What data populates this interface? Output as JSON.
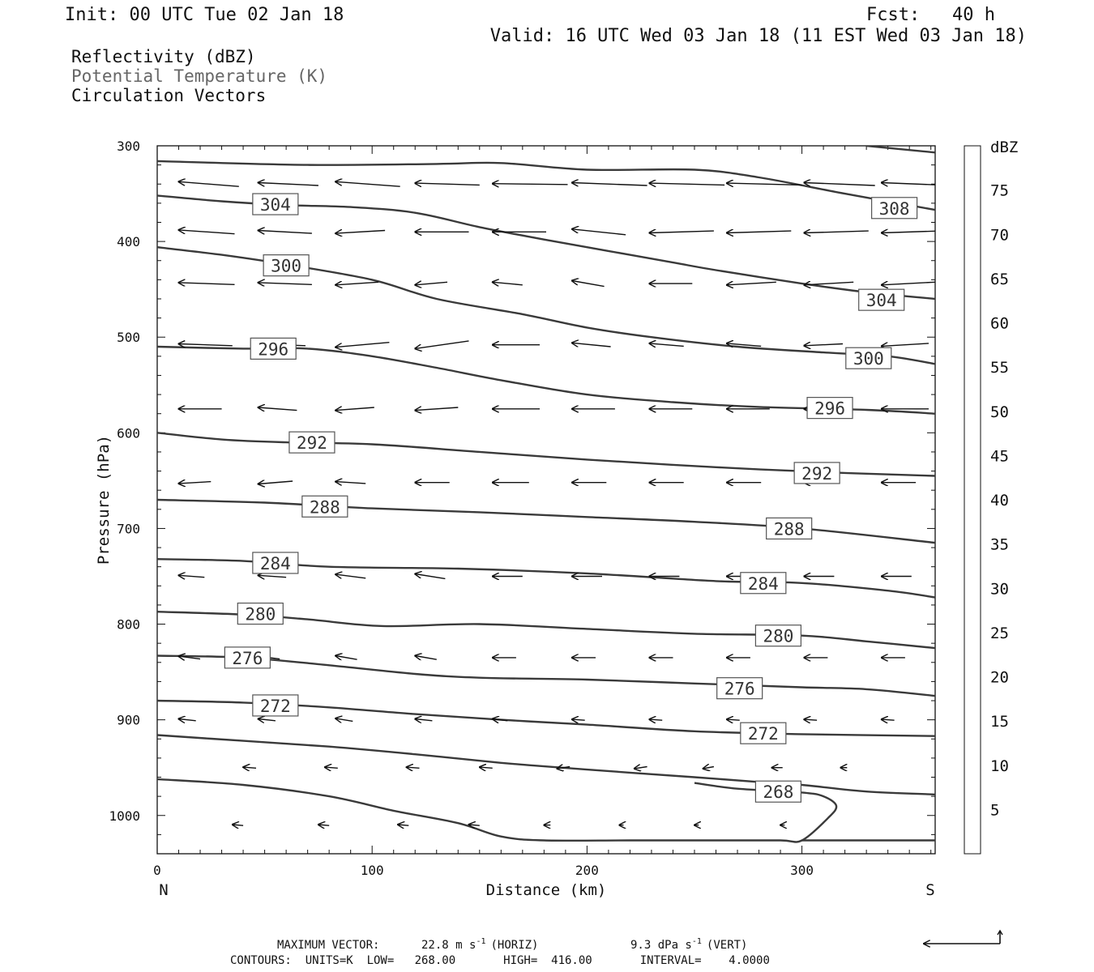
{
  "header": {
    "init": "Init: 00 UTC Tue 02 Jan 18",
    "fcst": "Fcst:   40 h",
    "valid": "Valid: 16 UTC Wed 03 Jan 18 (11 EST Wed 03 Jan 18)"
  },
  "variables": [
    {
      "label": "Reflectivity (dBZ)",
      "color": "#111111"
    },
    {
      "label": "Potential Temperature (K)",
      "color": "#666666"
    },
    {
      "label": "Circulation Vectors",
      "color": "#111111"
    }
  ],
  "footer": {
    "max_vector_label": "MAXIMUM VECTOR:",
    "horiz_value": "22.8 m s",
    "horiz_unit": "-1",
    "horiz_tag": "(HORIZ)",
    "vert_value": "9.3 dPa s",
    "vert_unit": "-1",
    "vert_tag": "(VERT)",
    "contours": "CONTOURS:  UNITS=K  LOW=   268.00       HIGH=  416.00       INTERVAL=    4.0000"
  },
  "chart_data": {
    "type": "line",
    "xlabel": "Distance (km)",
    "ylabel": "Pressure (hPa)",
    "x_left_label": "N",
    "x_right_label": "S",
    "xlim": [
      0,
      362
    ],
    "ylim": [
      300,
      1040
    ],
    "x_ticks": [
      0,
      100,
      200,
      300
    ],
    "y_ticks": [
      300,
      400,
      500,
      600,
      700,
      800,
      900,
      1000
    ],
    "colorbar": {
      "unit": "dBZ",
      "levels": [
        5,
        10,
        15,
        20,
        25,
        30,
        35,
        40,
        45,
        50,
        55,
        60,
        65,
        70,
        75
      ],
      "colors": [
        "#ffffff",
        "#00e5e5",
        "#0099e5",
        "#0000e5",
        "#00ff00",
        "#00cc00",
        "#008800",
        "#ffff00",
        "#e5c000",
        "#ff8800",
        "#ff0000",
        "#dd0000",
        "#bb0000",
        "#ff00ff",
        "#9955cc",
        "#ffffff"
      ]
    },
    "contour_color": "#3a3a3a",
    "contours": [
      {
        "value": "308",
        "points": [
          [
            330,
            300
          ],
          [
            362,
            307
          ]
        ],
        "labels": [
          [
            343,
            365
          ]
        ]
      },
      {
        "value": "",
        "points": [
          [
            0,
            316
          ],
          [
            70,
            320
          ],
          [
            130,
            319
          ],
          [
            160,
            318
          ],
          [
            200,
            325
          ],
          [
            250,
            325
          ],
          [
            280,
            333
          ],
          [
            320,
            350
          ],
          [
            362,
            367
          ]
        ],
        "labels": []
      },
      {
        "value": "304",
        "points": [
          [
            0,
            352
          ],
          [
            30,
            358
          ],
          [
            60,
            362
          ],
          [
            90,
            364
          ],
          [
            120,
            370
          ],
          [
            150,
            385
          ],
          [
            180,
            398
          ],
          [
            210,
            410
          ],
          [
            240,
            422
          ],
          [
            260,
            430
          ],
          [
            300,
            444
          ],
          [
            330,
            453
          ],
          [
            362,
            460
          ]
        ],
        "labels": [
          [
            55,
            361
          ],
          [
            337,
            461
          ]
        ]
      },
      {
        "value": "300",
        "points": [
          [
            0,
            406
          ],
          [
            30,
            414
          ],
          [
            60,
            424
          ],
          [
            100,
            440
          ],
          [
            130,
            460
          ],
          [
            170,
            476
          ],
          [
            200,
            490
          ],
          [
            230,
            500
          ],
          [
            270,
            510
          ],
          [
            310,
            516
          ],
          [
            340,
            520
          ],
          [
            362,
            528
          ]
        ],
        "labels": [
          [
            60,
            425
          ],
          [
            331,
            522
          ]
        ]
      },
      {
        "value": "296",
        "points": [
          [
            0,
            510
          ],
          [
            40,
            512
          ],
          [
            70,
            512
          ],
          [
            100,
            520
          ],
          [
            130,
            532
          ],
          [
            160,
            545
          ],
          [
            200,
            560
          ],
          [
            240,
            568
          ],
          [
            280,
            573
          ],
          [
            330,
            576
          ],
          [
            362,
            580
          ]
        ],
        "labels": [
          [
            54,
            512
          ],
          [
            313,
            574
          ]
        ]
      },
      {
        "value": "292",
        "points": [
          [
            0,
            600
          ],
          [
            30,
            607
          ],
          [
            60,
            610
          ],
          [
            100,
            612
          ],
          [
            150,
            620
          ],
          [
            200,
            628
          ],
          [
            260,
            636
          ],
          [
            320,
            642
          ],
          [
            362,
            645
          ]
        ],
        "labels": [
          [
            72,
            610
          ],
          [
            307,
            642
          ]
        ]
      },
      {
        "value": "288",
        "points": [
          [
            0,
            670
          ],
          [
            50,
            673
          ],
          [
            100,
            679
          ],
          [
            150,
            683
          ],
          [
            200,
            688
          ],
          [
            250,
            693
          ],
          [
            300,
            700
          ],
          [
            362,
            715
          ]
        ],
        "labels": [
          [
            78,
            677
          ],
          [
            294,
            700
          ]
        ]
      },
      {
        "value": "284",
        "points": [
          [
            0,
            732
          ],
          [
            40,
            734
          ],
          [
            80,
            740
          ],
          [
            140,
            742
          ],
          [
            200,
            747
          ],
          [
            260,
            755
          ],
          [
            300,
            757
          ],
          [
            340,
            765
          ],
          [
            362,
            772
          ]
        ],
        "labels": [
          [
            55,
            736
          ],
          [
            282,
            757
          ]
        ]
      },
      {
        "value": "280",
        "points": [
          [
            0,
            787
          ],
          [
            40,
            790
          ],
          [
            70,
            795
          ],
          [
            105,
            802
          ],
          [
            150,
            800
          ],
          [
            200,
            805
          ],
          [
            250,
            810
          ],
          [
            300,
            812
          ],
          [
            330,
            818
          ],
          [
            362,
            825
          ]
        ],
        "labels": [
          [
            48,
            789
          ],
          [
            289,
            812
          ]
        ]
      },
      {
        "value": "276",
        "points": [
          [
            0,
            833
          ],
          [
            40,
            835
          ],
          [
            80,
            843
          ],
          [
            120,
            852
          ],
          [
            150,
            856
          ],
          [
            200,
            858
          ],
          [
            250,
            862
          ],
          [
            300,
            866
          ],
          [
            330,
            868
          ],
          [
            362,
            875
          ]
        ],
        "labels": [
          [
            42,
            835
          ],
          [
            271,
            867
          ]
        ]
      },
      {
        "value": "272",
        "points": [
          [
            0,
            880
          ],
          [
            40,
            882
          ],
          [
            80,
            887
          ],
          [
            120,
            894
          ],
          [
            160,
            900
          ],
          [
            200,
            905
          ],
          [
            250,
            912
          ],
          [
            300,
            915
          ],
          [
            362,
            917
          ]
        ],
        "labels": [
          [
            55,
            885
          ],
          [
            282,
            914
          ]
        ]
      },
      {
        "value": "",
        "points": [
          [
            0,
            916
          ],
          [
            40,
            922
          ],
          [
            80,
            928
          ],
          [
            120,
            936
          ],
          [
            160,
            945
          ],
          [
            200,
            952
          ],
          [
            250,
            960
          ],
          [
            280,
            965
          ],
          [
            300,
            968
          ],
          [
            330,
            975
          ],
          [
            362,
            978
          ]
        ],
        "labels": []
      },
      {
        "value": "268",
        "points": [
          [
            0,
            962
          ],
          [
            40,
            968
          ],
          [
            80,
            980
          ],
          [
            110,
            995
          ],
          [
            140,
            1008
          ],
          [
            160,
            1022
          ],
          [
            180,
            1026
          ],
          [
            220,
            1026
          ],
          [
            260,
            1026
          ],
          [
            290,
            1026
          ],
          [
            300,
            1026
          ],
          [
            312,
            1003
          ],
          [
            316,
            990
          ],
          [
            310,
            980
          ],
          [
            300,
            976
          ],
          [
            270,
            972
          ],
          [
            250,
            966
          ]
        ],
        "labels": [
          [
            289,
            975
          ]
        ]
      },
      {
        "value": "",
        "points": [
          [
            300,
            1026
          ],
          [
            340,
            1026
          ],
          [
            362,
            1026
          ]
        ],
        "labels": []
      }
    ],
    "vector_rows": [
      {
        "p": 340,
        "x": [
          10,
          47,
          83,
          120,
          156,
          193,
          229,
          265,
          301,
          337
        ],
        "dx": [
          -28,
          -28,
          -30,
          -30,
          -35,
          -35,
          -35,
          -35,
          -33,
          -33
        ],
        "dp": [
          -5,
          -3,
          -5,
          -2,
          -1,
          -3,
          -2,
          -2,
          -3,
          -3
        ]
      },
      {
        "p": 390,
        "x": [
          10,
          47,
          83,
          120,
          156,
          193,
          229,
          265,
          301,
          337
        ],
        "dx": [
          -26,
          -25,
          -23,
          -25,
          -25,
          -25,
          -30,
          -30,
          -30,
          -27
        ],
        "dp": [
          -4,
          -3,
          3,
          0,
          0,
          -6,
          2,
          2,
          2,
          2
        ]
      },
      {
        "p": 444,
        "x": [
          10,
          47,
          83,
          120,
          156,
          193,
          229,
          265,
          301,
          337
        ],
        "dx": [
          -26,
          -25,
          -20,
          -15,
          -14,
          -15,
          -20,
          -23,
          -23,
          -25
        ],
        "dp": [
          -2,
          -2,
          3,
          3,
          -3,
          -6,
          0,
          3,
          3,
          3
        ]
      },
      {
        "p": 508,
        "x": [
          10,
          47,
          83,
          120,
          156,
          193,
          229,
          265,
          301,
          337
        ],
        "dx": [
          -25,
          -22,
          -25,
          -25,
          -22,
          -18,
          -16,
          -16,
          -18,
          -22
        ],
        "dp": [
          -2,
          -2,
          5,
          8,
          0,
          -4,
          -3,
          -3,
          2,
          3
        ]
      },
      {
        "p": 575,
        "x": [
          10,
          47,
          83,
          120,
          156,
          193,
          229,
          265,
          301,
          337
        ],
        "dx": [
          -20,
          -18,
          -18,
          -20,
          -22,
          -20,
          -20,
          -20,
          -20,
          -22
        ],
        "dp": [
          0,
          -3,
          3,
          3,
          0,
          0,
          0,
          0,
          0,
          0
        ]
      },
      {
        "p": 652,
        "x": [
          10,
          47,
          83,
          120,
          156,
          193,
          229,
          265,
          301,
          337
        ],
        "dx": [
          -15,
          -16,
          -14,
          -16,
          -17,
          -16,
          -16,
          -16,
          -16,
          -16
        ],
        "dp": [
          2,
          3,
          -2,
          0,
          0,
          0,
          0,
          0,
          0,
          0
        ]
      },
      {
        "p": 750,
        "x": [
          10,
          47,
          83,
          120,
          156,
          193,
          229,
          265,
          301,
          337
        ],
        "dx": [
          -12,
          -13,
          -14,
          -14,
          -14,
          -14,
          -14,
          -14,
          -14,
          -14
        ],
        "dp": [
          -2,
          -2,
          -4,
          -5,
          0,
          0,
          0,
          0,
          0,
          0
        ]
      },
      {
        "p": 835,
        "x": [
          10,
          47,
          83,
          120,
          156,
          193,
          229,
          265,
          301,
          337
        ],
        "dx": [
          -10,
          -10,
          -10,
          -10,
          -11,
          -11,
          -11,
          -11,
          -11,
          -11
        ],
        "dp": [
          -3,
          -3,
          -4,
          -4,
          0,
          0,
          0,
          0,
          0,
          0
        ]
      },
      {
        "p": 900,
        "x": [
          10,
          47,
          83,
          120,
          156,
          193,
          229,
          265,
          301,
          337
        ],
        "dx": [
          -8,
          -8,
          -8,
          -8,
          -7,
          -6,
          -6,
          -6,
          -6,
          -6
        ],
        "dp": [
          -2,
          -2,
          -3,
          -2,
          -2,
          -1,
          -1,
          -1,
          -1,
          -1
        ]
      },
      {
        "p": 950,
        "x": [
          40,
          78,
          116,
          150,
          186,
          222,
          254,
          286,
          318
        ],
        "dx": [
          -6,
          -6,
          -6,
          -6,
          -6,
          -6,
          -5,
          -5,
          -3
        ],
        "dp": [
          -1,
          -1,
          -1,
          -1,
          2,
          2,
          2,
          0,
          0
        ]
      },
      {
        "p": 1010,
        "x": [
          35,
          75,
          112,
          145,
          180,
          215,
          250,
          290
        ],
        "dx": [
          -5,
          -5,
          -5,
          -5,
          -3,
          -2,
          -2,
          -2
        ],
        "dp": [
          -1,
          -1,
          -1,
          -1,
          0,
          0,
          0,
          0
        ]
      }
    ]
  }
}
